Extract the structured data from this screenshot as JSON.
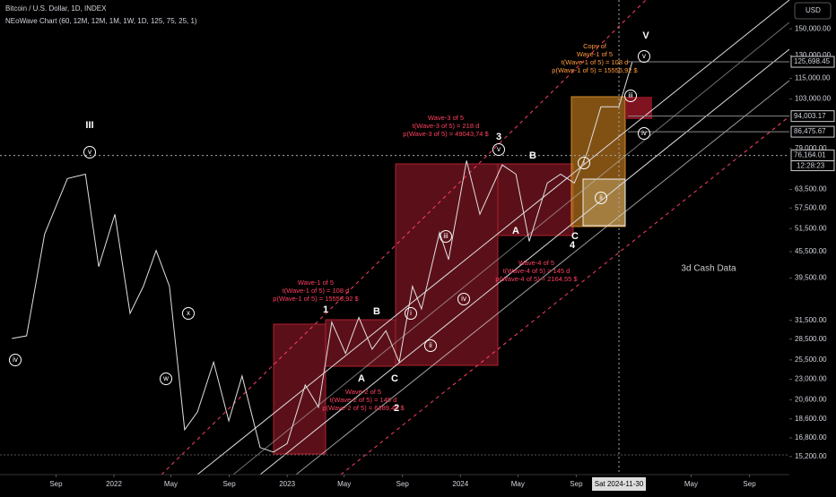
{
  "header": {
    "title": "Bitcoin / U.S. Dollar, 1D, INDEX",
    "indicator": "NEoWave Chart (60, 12M, 12M, 1M, 1W, 1D, 125, 75, 25, 1)",
    "currency_button": "USD"
  },
  "chart_data": {
    "type": "line",
    "log_scale": true,
    "x": [
      "2021-05-31",
      "2021-07-01",
      "2021-08-08",
      "2021-09-25",
      "2021-11-02",
      "2021-11-30",
      "2022-01-03",
      "2022-02-04",
      "2022-03-04",
      "2022-03-31",
      "2022-04-28",
      "2022-05-30",
      "2022-06-26",
      "2022-07-30",
      "2022-08-31",
      "2022-09-28",
      "2022-11-05",
      "2022-12-03",
      "2023-01-01",
      "2023-02-08",
      "2023-03-08",
      "2023-04-05",
      "2023-05-04",
      "2023-06-01",
      "2023-06-29",
      "2023-07-28",
      "2023-08-25",
      "2023-09-22",
      "2023-10-11",
      "2023-11-18",
      "2023-12-07",
      "2024-01-14",
      "2024-02-11",
      "2024-03-29",
      "2024-04-27",
      "2024-05-25",
      "2024-07-02",
      "2024-07-30",
      "2024-08-28",
      "2024-09-25",
      "2024-10-23",
      "2024-11-30",
      "2024-12-28"
    ],
    "series": [
      {
        "color": "#e0e0e0",
        "values": [
          28600,
          29000,
          50000,
          67300,
          68900,
          42000,
          55600,
          32700,
          37800,
          45800,
          37800,
          17550,
          19300,
          25200,
          18400,
          23400,
          15950,
          15570,
          16300,
          22300,
          19800,
          31200,
          26400,
          32000,
          27000,
          29800,
          25200,
          37800,
          33500,
          50400,
          43600,
          74100,
          55600,
          72400,
          68900,
          48100,
          65700,
          68900,
          65700,
          77800,
          98800,
          98800,
          125698
        ]
      }
    ],
    "xlim": [
      "2021-05-06",
      "2025-11-24"
    ],
    "xticks": [
      {
        "value": "2021-09-01",
        "label": "Sep"
      },
      {
        "value": "2022-01-01",
        "label": "2022"
      },
      {
        "value": "2022-05-01",
        "label": "May"
      },
      {
        "value": "2022-09-01",
        "label": "Sep"
      },
      {
        "value": "2023-01-01",
        "label": "2023"
      },
      {
        "value": "2023-05-01",
        "label": "May"
      },
      {
        "value": "2023-09-01",
        "label": "Sep"
      },
      {
        "value": "2024-01-01",
        "label": "2024"
      },
      {
        "value": "2024-05-01",
        "label": "May"
      },
      {
        "value": "2024-09-01",
        "label": "Sep"
      },
      {
        "value": "2025-05-01",
        "label": "May"
      },
      {
        "value": "2025-09-01",
        "label": "Sep"
      }
    ],
    "ylim": [
      13800,
      175000
    ],
    "yticks": [
      {
        "value": 150000,
        "label": "150,000.00"
      },
      {
        "value": 130000,
        "label": "130,000.00"
      },
      {
        "value": 115000,
        "label": "115,000.00"
      },
      {
        "value": 103000,
        "label": "103,000.00"
      },
      {
        "value": 79000,
        "label": "79,000.00"
      },
      {
        "value": 63500,
        "label": "63,500.00"
      },
      {
        "value": 57500,
        "label": "57,500.00"
      },
      {
        "value": 51500,
        "label": "51,500.00"
      },
      {
        "value": 45500,
        "label": "45,500.00"
      },
      {
        "value": 39500,
        "label": "39,500.00"
      },
      {
        "value": 31500,
        "label": "31,500.00"
      },
      {
        "value": 28500,
        "label": "28,500.00"
      },
      {
        "value": 25500,
        "label": "25,500.00"
      },
      {
        "value": 23000,
        "label": "23,000.00"
      },
      {
        "value": 20600,
        "label": "20,600.00"
      },
      {
        "value": 18600,
        "label": "18,600.00"
      },
      {
        "value": 16800,
        "label": "16,800.00"
      },
      {
        "value": 15200,
        "label": "15,200.00"
      }
    ],
    "price_labels": [
      {
        "value": 125698.45,
        "label": "125,698.45"
      },
      {
        "value": 94003.17,
        "label": "94,003.17"
      },
      {
        "value": 86475.67,
        "label": "86,475.67"
      },
      {
        "value": 76164.01,
        "label": "76,164.01"
      }
    ],
    "countdown": "12:28:23",
    "crosshair": {
      "x": "2024-11-30",
      "label": "Sat 2024-11-30"
    },
    "annotations": [
      "III",
      "v",
      "iv",
      "x",
      "w",
      "1",
      "B",
      "A",
      "C",
      "2",
      "3",
      "v",
      "B",
      "A",
      "C",
      "4",
      "i",
      "ii",
      "iii",
      "iv",
      "i",
      "ii",
      "iii",
      "iv",
      "v",
      "V",
      "3d Cash Data"
    ],
    "wave_notes": [
      [
        "Wave-1 of 5",
        "t(Wave-1 of 5) = 108 d",
        "p(Wave-1 of 5) = 15556,92 $"
      ],
      [
        "Wave-2 of 5",
        "t(Wave-2 of 5) = 145 d",
        "p(Wave-2 of 5) = 6389,45 $"
      ],
      [
        "Wave-3 of 5",
        "t(Wave-3 of 5) = 218 d",
        "p(Wave-3 of 5) = 49043,74 $"
      ],
      [
        "Wave-4 of 5",
        "t(Wave-4 of 5) = 145 d",
        "p(Wave-4 of 5) = 2164,55 $"
      ],
      [
        "Copy of",
        "Wave-1 of 5",
        "t(Wave-1 of 5) = 108 d",
        "p(Wave-1 of 5) = 15556,92 $"
      ]
    ]
  }
}
